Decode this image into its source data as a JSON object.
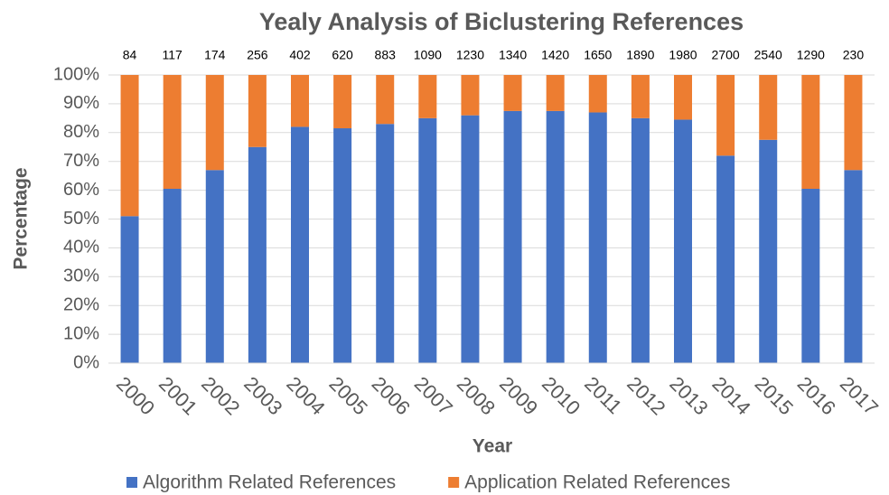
{
  "chart_data": {
    "type": "stacked_bar_percent",
    "title": "Yealy Analysis of Biclustering References",
    "x_label": "Year",
    "y_label": "Percentage",
    "categories": [
      "2000",
      "2001",
      "2002",
      "2003",
      "2004",
      "2005",
      "2006",
      "2007",
      "2008",
      "2009",
      "2010",
      "2011",
      "2012",
      "2013",
      "2014",
      "2015",
      "2016",
      "2017"
    ],
    "totals": [
      84,
      117,
      174,
      256,
      402,
      620,
      883,
      1090,
      1230,
      1340,
      1420,
      1650,
      1890,
      1980,
      2700,
      2540,
      1290,
      230
    ],
    "series": [
      {
        "name": "Algorithm Related References",
        "color": "#4472c4",
        "values": [
          51,
          60.5,
          67,
          75,
          82,
          81.5,
          83,
          85,
          86,
          87.5,
          87.5,
          87,
          85,
          84.5,
          72,
          77.5,
          60.5,
          67
        ]
      },
      {
        "name": "Application Related References",
        "color": "#ed7d31",
        "values": [
          49,
          39.5,
          33,
          25,
          18,
          18.5,
          17,
          15,
          14,
          12.5,
          12.5,
          13,
          15,
          15.5,
          28,
          22.5,
          39.5,
          33
        ]
      }
    ],
    "ylim": [
      0,
      100
    ],
    "yticks": [
      {
        "value": 0,
        "label": "0%"
      },
      {
        "value": 10,
        "label": "10%"
      },
      {
        "value": 20,
        "label": "20%"
      },
      {
        "value": 30,
        "label": "30%"
      },
      {
        "value": 40,
        "label": "40%"
      },
      {
        "value": 50,
        "label": "50%"
      },
      {
        "value": 60,
        "label": "60%"
      },
      {
        "value": 70,
        "label": "70%"
      },
      {
        "value": 80,
        "label": "80%"
      },
      {
        "value": 90,
        "label": "90%"
      },
      {
        "value": 100,
        "label": "100%"
      }
    ],
    "grid": true,
    "legend": "bottom"
  }
}
